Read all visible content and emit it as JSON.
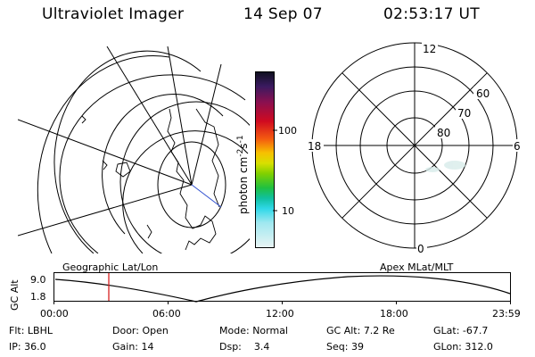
{
  "header": {
    "instrument": "Ultraviolet Imager",
    "date": "14 Sep 07",
    "time": "02:53:17 UT"
  },
  "colorbar": {
    "unit_label": "photon cm",
    "unit_sup1": "-2",
    "unit_mid": "s",
    "unit_sup2": "-1",
    "tick_100": "100",
    "tick_10": "10"
  },
  "polar": {
    "lat_labels": [
      "60",
      "70",
      "80"
    ],
    "mlt_labels": {
      "top": "12",
      "bottom": "0",
      "left": "18",
      "right": "6"
    }
  },
  "panels": {
    "left_label": "Geographic Lat/Lon",
    "right_label": "Apex  MLat/MLT"
  },
  "timeline": {
    "axis_label": "GC Alt",
    "y_ticks": [
      "9.0",
      "1.8"
    ],
    "x_ticks": [
      "00:00",
      "06:00",
      "12:00",
      "18:00",
      "23:59"
    ],
    "marker_time": "02:53"
  },
  "footer": {
    "filter": {
      "key": "Flt:",
      "value": "LBHL"
    },
    "ip": {
      "key": "IP:",
      "value": "36.0"
    },
    "door": {
      "key": "Door:",
      "value": "Open"
    },
    "gain": {
      "key": "Gain:",
      "value": "14"
    },
    "mode": {
      "key": "Mode:",
      "value": "Normal"
    },
    "dsp": {
      "key": "Dsp:",
      "value": "3.4"
    },
    "gc_alt": {
      "key": "GC Alt:",
      "value": "7.2 Re"
    },
    "seq": {
      "key": "Seq:",
      "value": "39"
    },
    "glat": {
      "key": "GLat:",
      "value": "-67.7"
    },
    "glon": {
      "key": "GLon:",
      "value": "312.0"
    }
  },
  "colors": {
    "marker": "#d62020",
    "grid": "#000000",
    "aurora": "#cfe8e4"
  }
}
